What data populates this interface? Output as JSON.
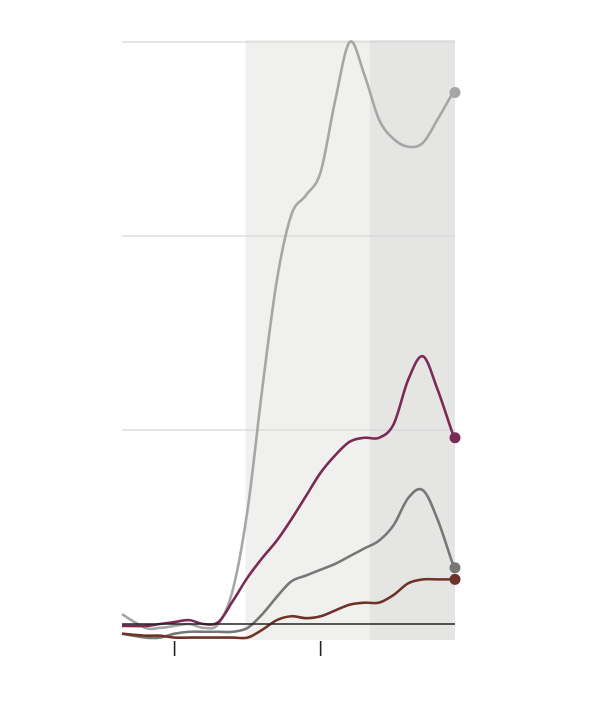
{
  "chart_data": {
    "type": "line",
    "x": [
      6.4,
      8,
      9,
      10,
      11,
      12,
      13,
      14,
      15,
      16,
      17,
      18,
      19,
      20,
      21,
      22,
      23,
      24,
      25,
      26,
      27,
      28,
      29,
      29.2
    ],
    "series": [
      {
        "color": "#a6a6a6",
        "values": [
          0.05,
          -0.02,
          -0.02,
          -0.01,
          0,
          -0.02,
          0,
          0.18,
          0.59,
          1.21,
          1.77,
          2.11,
          2.21,
          2.33,
          2.7,
          3.0,
          2.83,
          2.6,
          2.5,
          2.46,
          2.48,
          2.6,
          2.73,
          2.74
        ]
      },
      {
        "color": "#7b2a55",
        "values": [
          -0.01,
          -0.01,
          0,
          0.01,
          0.02,
          0,
          0.01,
          0.12,
          0.24,
          0.34,
          0.43,
          0.54,
          0.66,
          0.78,
          0.87,
          0.94,
          0.96,
          0.96,
          1.03,
          1.26,
          1.38,
          1.21,
          0.99,
          0.96
        ]
      },
      {
        "color": "#777777",
        "values": [
          -0.05,
          -0.07,
          -0.07,
          -0.05,
          -0.04,
          -0.04,
          -0.04,
          -0.04,
          -0.02,
          0.05,
          0.14,
          0.22,
          0.25,
          0.28,
          0.31,
          0.35,
          0.39,
          0.43,
          0.51,
          0.65,
          0.69,
          0.54,
          0.32,
          0.29
        ]
      },
      {
        "color": "#6e3226",
        "values": [
          -0.05,
          -0.06,
          -0.06,
          -0.07,
          -0.07,
          -0.07,
          -0.07,
          -0.07,
          -0.07,
          -0.03,
          0.02,
          0.04,
          0.03,
          0.04,
          0.07,
          0.1,
          0.11,
          0.11,
          0.15,
          0.21,
          0.23,
          0.23,
          0.23,
          0.23
        ]
      }
    ],
    "xlim": [
      6.4,
      29.2
    ],
    "xticks": [
      10,
      20
    ],
    "ylim": [
      -0.1,
      3.05
    ],
    "yticks": [
      0,
      1,
      2,
      3
    ],
    "grid": true,
    "shaded_ranges": [
      {
        "range": [
          14.86,
          23.36
        ],
        "color": "#f0f0ee"
      },
      {
        "range": [
          23.36,
          29.2
        ],
        "color": "#e5e5e4"
      }
    ],
    "end_markers": true
  }
}
